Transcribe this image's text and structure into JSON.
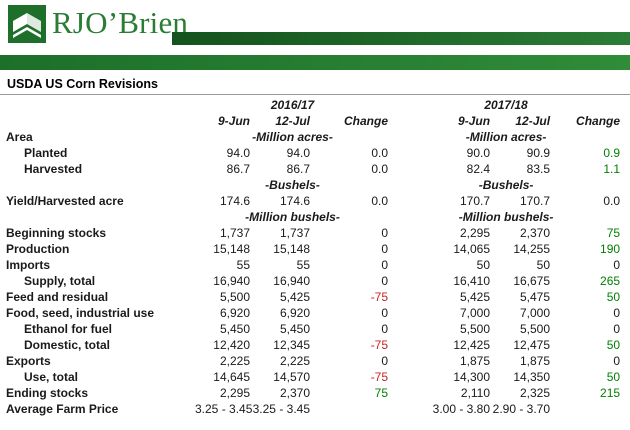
{
  "brand": {
    "name": "RJO’Brien",
    "colors": {
      "bar_dark": "#14531d",
      "bar_green": "#2b7d36",
      "positive": "#008000",
      "negative": "#cc2222"
    }
  },
  "title": "USDA US Corn Revisions",
  "table": {
    "group_headers": [
      "2016/17",
      "2017/18"
    ],
    "col_headers": [
      "9-Jun",
      "12-Jul",
      "Change"
    ],
    "rows": [
      {
        "type": "units",
        "label": "Area",
        "unit": "-Million acres-"
      },
      {
        "type": "data",
        "label": "Planted",
        "indent": 1,
        "values": [
          "94.0",
          "94.0",
          "0.0",
          "90.0",
          "90.9",
          "0.9"
        ],
        "colors": [
          "",
          "",
          "",
          "",
          "",
          "pos"
        ]
      },
      {
        "type": "data",
        "label": "Harvested",
        "indent": 1,
        "values": [
          "86.7",
          "86.7",
          "0.0",
          "82.4",
          "83.5",
          "1.1"
        ],
        "colors": [
          "",
          "",
          "",
          "",
          "",
          "pos"
        ]
      },
      {
        "type": "units",
        "label": "",
        "unit": "-Bushels-"
      },
      {
        "type": "data",
        "label": "Yield/Harvested acre",
        "indent": 0,
        "values": [
          "174.6",
          "174.6",
          "0.0",
          "170.7",
          "170.7",
          "0.0"
        ],
        "colors": [
          "",
          "",
          "",
          "",
          "",
          ""
        ]
      },
      {
        "type": "units",
        "label": "",
        "unit": "-Million bushels-"
      },
      {
        "type": "data",
        "label": "Beginning stocks",
        "indent": 0,
        "values": [
          "1,737",
          "1,737",
          "0",
          "2,295",
          "2,370",
          "75"
        ],
        "colors": [
          "",
          "",
          "",
          "",
          "",
          "pos"
        ]
      },
      {
        "type": "data",
        "label": "Production",
        "indent": 0,
        "values": [
          "15,148",
          "15,148",
          "0",
          "14,065",
          "14,255",
          "190"
        ],
        "colors": [
          "",
          "",
          "",
          "",
          "",
          "pos"
        ]
      },
      {
        "type": "data",
        "label": "Imports",
        "indent": 0,
        "values": [
          "55",
          "55",
          "0",
          "50",
          "50",
          "0"
        ],
        "colors": [
          "",
          "",
          "",
          "",
          "",
          ""
        ]
      },
      {
        "type": "data",
        "label": "Supply, total",
        "indent": 1,
        "values": [
          "16,940",
          "16,940",
          "0",
          "16,410",
          "16,675",
          "265"
        ],
        "colors": [
          "",
          "",
          "",
          "",
          "",
          "pos"
        ]
      },
      {
        "type": "data",
        "label": "Feed and residual",
        "indent": 0,
        "values": [
          "5,500",
          "5,425",
          "-75",
          "5,425",
          "5,475",
          "50"
        ],
        "colors": [
          "",
          "",
          "neg",
          "",
          "",
          "pos"
        ]
      },
      {
        "type": "data",
        "label": "Food, seed, industrial use",
        "indent": 0,
        "values": [
          "6,920",
          "6,920",
          "0",
          "7,000",
          "7,000",
          "0"
        ],
        "colors": [
          "",
          "",
          "",
          "",
          "",
          ""
        ]
      },
      {
        "type": "data",
        "label": "Ethanol for fuel",
        "indent": 1,
        "values": [
          "5,450",
          "5,450",
          "0",
          "5,500",
          "5,500",
          "0"
        ],
        "colors": [
          "",
          "",
          "",
          "",
          "",
          ""
        ]
      },
      {
        "type": "data",
        "label": "Domestic, total",
        "indent": 1,
        "values": [
          "12,420",
          "12,345",
          "-75",
          "12,425",
          "12,475",
          "50"
        ],
        "colors": [
          "",
          "",
          "neg",
          "",
          "",
          "pos"
        ]
      },
      {
        "type": "data",
        "label": "Exports",
        "indent": 0,
        "values": [
          "2,225",
          "2,225",
          "0",
          "1,875",
          "1,875",
          "0"
        ],
        "colors": [
          "",
          "",
          "",
          "",
          "",
          ""
        ]
      },
      {
        "type": "data",
        "label": "Use, total",
        "indent": 1,
        "values": [
          "14,645",
          "14,570",
          "-75",
          "14,300",
          "14,350",
          "50"
        ],
        "colors": [
          "",
          "",
          "neg",
          "",
          "",
          "pos"
        ]
      },
      {
        "type": "data",
        "label": "Ending stocks",
        "indent": 0,
        "values": [
          "2,295",
          "2,370",
          "75",
          "2,110",
          "2,325",
          "215"
        ],
        "colors": [
          "",
          "",
          "pos",
          "",
          "",
          "pos"
        ]
      },
      {
        "type": "data",
        "label": "Average Farm Price",
        "indent": 0,
        "values": [
          "3.25 - 3.45",
          "3.25 - 3.45",
          "",
          "3.00 - 3.80",
          "2.90 - 3.70",
          ""
        ],
        "colors": [
          "",
          "",
          "",
          "",
          "",
          ""
        ]
      }
    ]
  }
}
